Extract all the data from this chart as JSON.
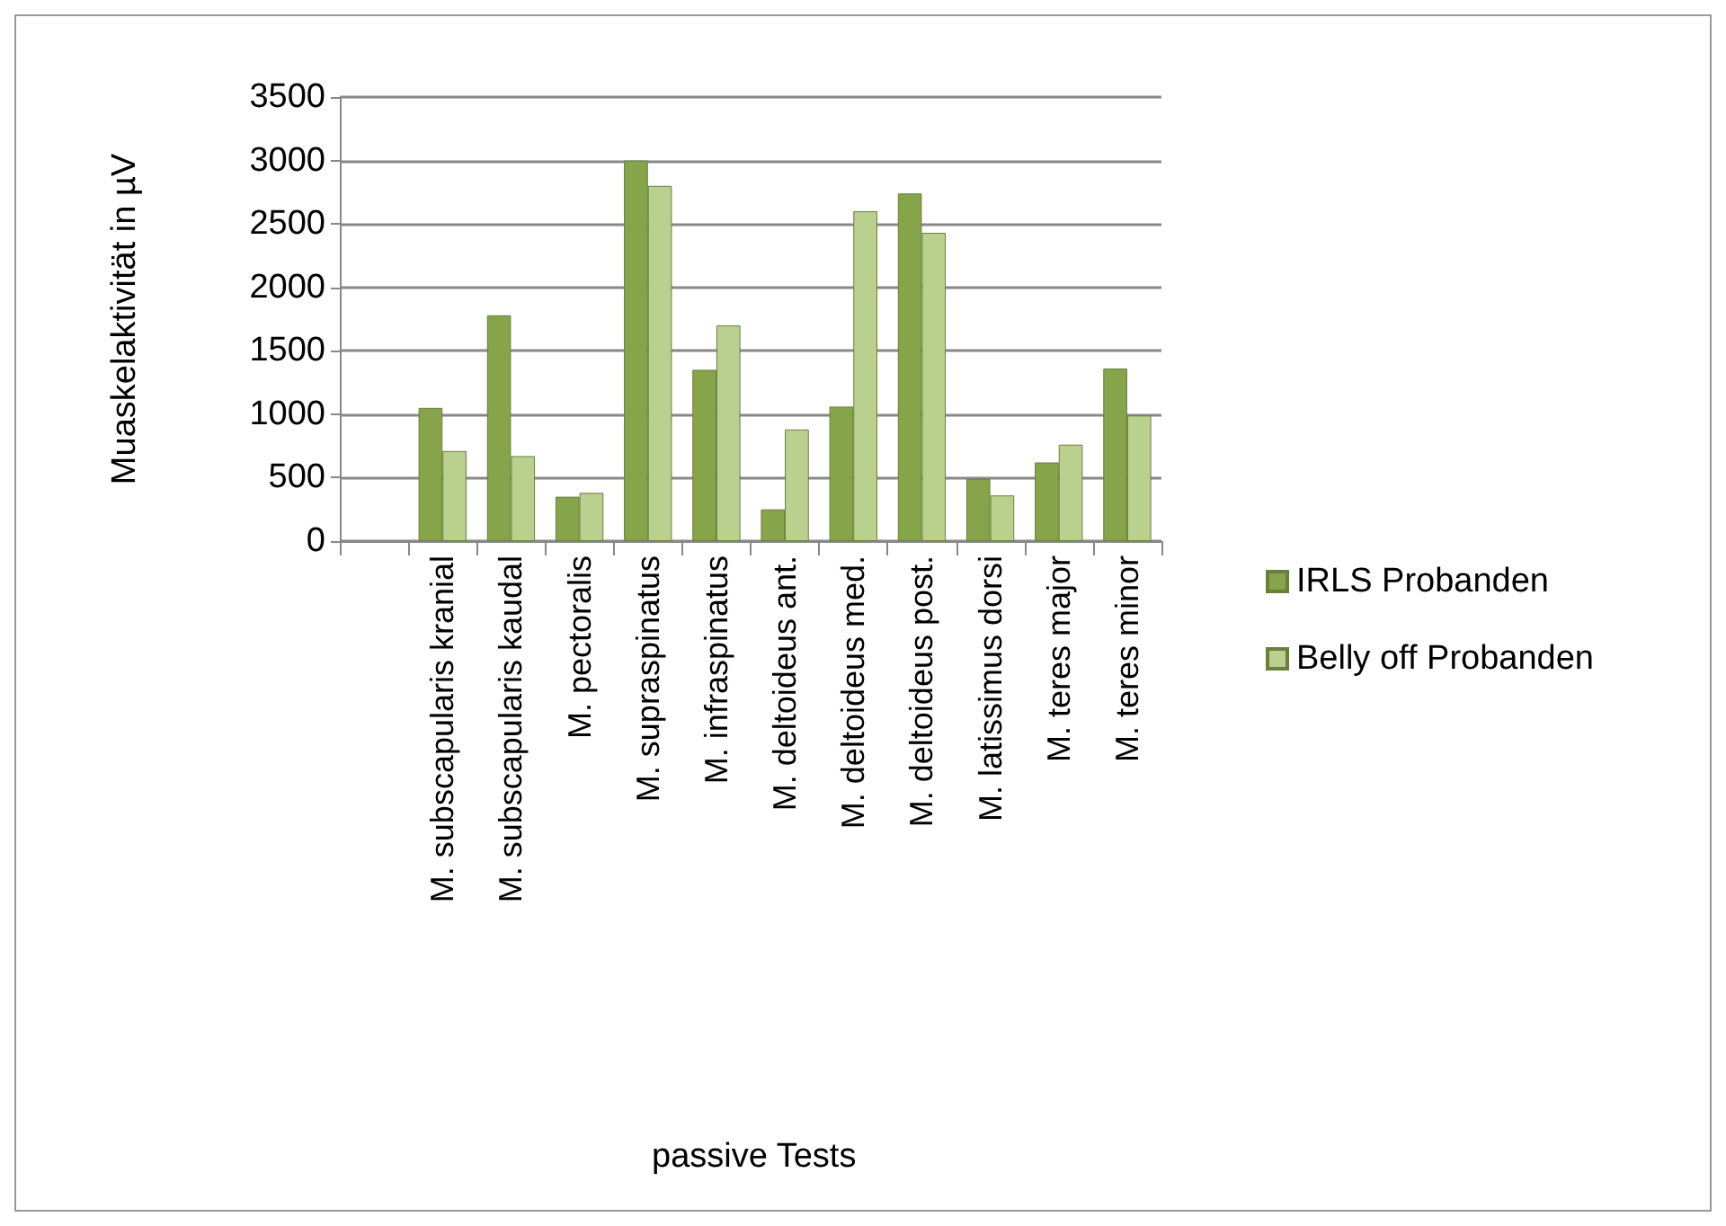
{
  "chart_data": {
    "type": "bar",
    "annotations": [
      "passive Tests"
    ],
    "ylabel": "Muaskelaktivität in µV",
    "categories": [
      null,
      "M. subscapularis kranial",
      "M. subscapularis kaudal",
      "M. pectoralis",
      "M. supraspinatus",
      "M. infraspinatus",
      "M. deltoideus ant.",
      "M. deltoideus med.",
      "M. deltoideus post.",
      "M. latissimus dorsi",
      "M. teres major",
      "M. teres minor"
    ],
    "series": [
      {
        "name": "IRLS Probanden",
        "color": "#86a44a",
        "values": [
          null,
          1050,
          1780,
          350,
          3000,
          1350,
          250,
          1060,
          2740,
          490,
          620,
          1360
        ]
      },
      {
        "name": "Belly off Probanden",
        "color": "#b9d08f",
        "values": [
          null,
          710,
          670,
          380,
          2800,
          1700,
          880,
          2600,
          2430,
          360,
          760,
          990
        ]
      }
    ],
    "ylim": [
      0,
      3500
    ],
    "yticks": [
      0,
      500,
      1000,
      1500,
      2000,
      2500,
      3000,
      3500
    ],
    "grid": "y",
    "legend": "right"
  }
}
